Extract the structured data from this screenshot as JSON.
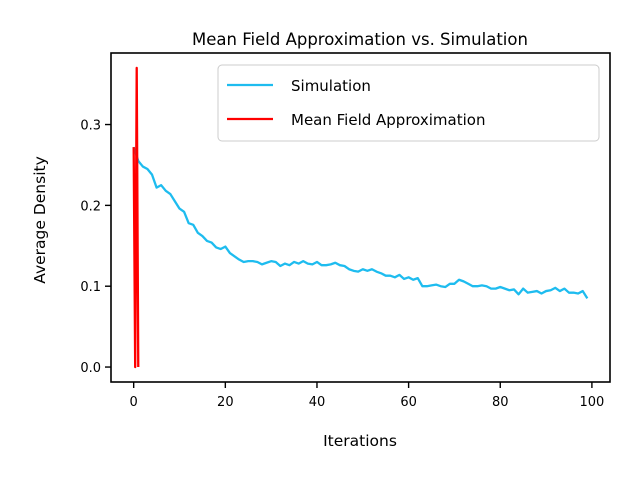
{
  "chart_data": {
    "type": "line",
    "title": "Mean Field Approximation vs. Simulation",
    "xlabel": "Iterations",
    "ylabel": "Average Density",
    "xlim": [
      -4.95,
      103.95
    ],
    "ylim": [
      -0.0185,
      0.3885
    ],
    "xticks": [
      0,
      20,
      40,
      60,
      80,
      100
    ],
    "yticks": [
      0.0,
      0.1,
      0.2,
      0.3
    ],
    "xtick_labels": [
      "0",
      "20",
      "40",
      "60",
      "80",
      "100"
    ],
    "ytick_labels": [
      "0.0",
      "0.1",
      "0.2",
      "0.3"
    ],
    "grid": false,
    "legend_position": "top-right",
    "series": [
      {
        "name": "Simulation",
        "color": "#1ebcef",
        "x": [
          0,
          1,
          2,
          3,
          4,
          5,
          6,
          7,
          8,
          9,
          10,
          11,
          12,
          13,
          14,
          15,
          16,
          17,
          18,
          19,
          20,
          21,
          22,
          23,
          24,
          25,
          26,
          27,
          28,
          29,
          30,
          31,
          32,
          33,
          34,
          35,
          36,
          37,
          38,
          39,
          40,
          41,
          42,
          43,
          44,
          45,
          46,
          47,
          48,
          49,
          50,
          51,
          52,
          53,
          54,
          55,
          56,
          57,
          58,
          59,
          60,
          61,
          62,
          63,
          64,
          65,
          66,
          67,
          68,
          69,
          70,
          71,
          72,
          73,
          74,
          75,
          76,
          77,
          78,
          79,
          80,
          81,
          82,
          83,
          84,
          85,
          86,
          87,
          88,
          89,
          90,
          91,
          92,
          93,
          94,
          95,
          96,
          97,
          98,
          99
        ],
        "y": [
          0.272,
          0.255,
          0.248,
          0.245,
          0.238,
          0.222,
          0.225,
          0.218,
          0.214,
          0.205,
          0.196,
          0.192,
          0.178,
          0.176,
          0.166,
          0.162,
          0.156,
          0.154,
          0.148,
          0.146,
          0.149,
          0.141,
          0.137,
          0.133,
          0.13,
          0.131,
          0.131,
          0.13,
          0.127,
          0.129,
          0.131,
          0.13,
          0.125,
          0.128,
          0.126,
          0.13,
          0.128,
          0.131,
          0.128,
          0.127,
          0.13,
          0.126,
          0.126,
          0.127,
          0.129,
          0.126,
          0.125,
          0.121,
          0.119,
          0.118,
          0.121,
          0.119,
          0.121,
          0.118,
          0.116,
          0.113,
          0.113,
          0.111,
          0.114,
          0.109,
          0.111,
          0.108,
          0.11,
          0.1,
          0.1,
          0.101,
          0.102,
          0.1,
          0.099,
          0.103,
          0.103,
          0.108,
          0.106,
          0.103,
          0.1,
          0.1,
          0.101,
          0.1,
          0.097,
          0.097,
          0.099,
          0.097,
          0.095,
          0.096,
          0.09,
          0.097,
          0.092,
          0.093,
          0.094,
          0.091,
          0.094,
          0.095,
          0.098,
          0.094,
          0.097,
          0.092,
          0.092,
          0.091,
          0.094,
          0.085
        ]
      },
      {
        "name": "Mean Field Approximation",
        "color": "#ff0000",
        "x": [
          0,
          0.33,
          0.66,
          1.0
        ],
        "y": [
          0.272,
          0.0,
          0.37,
          0.0
        ]
      }
    ]
  }
}
